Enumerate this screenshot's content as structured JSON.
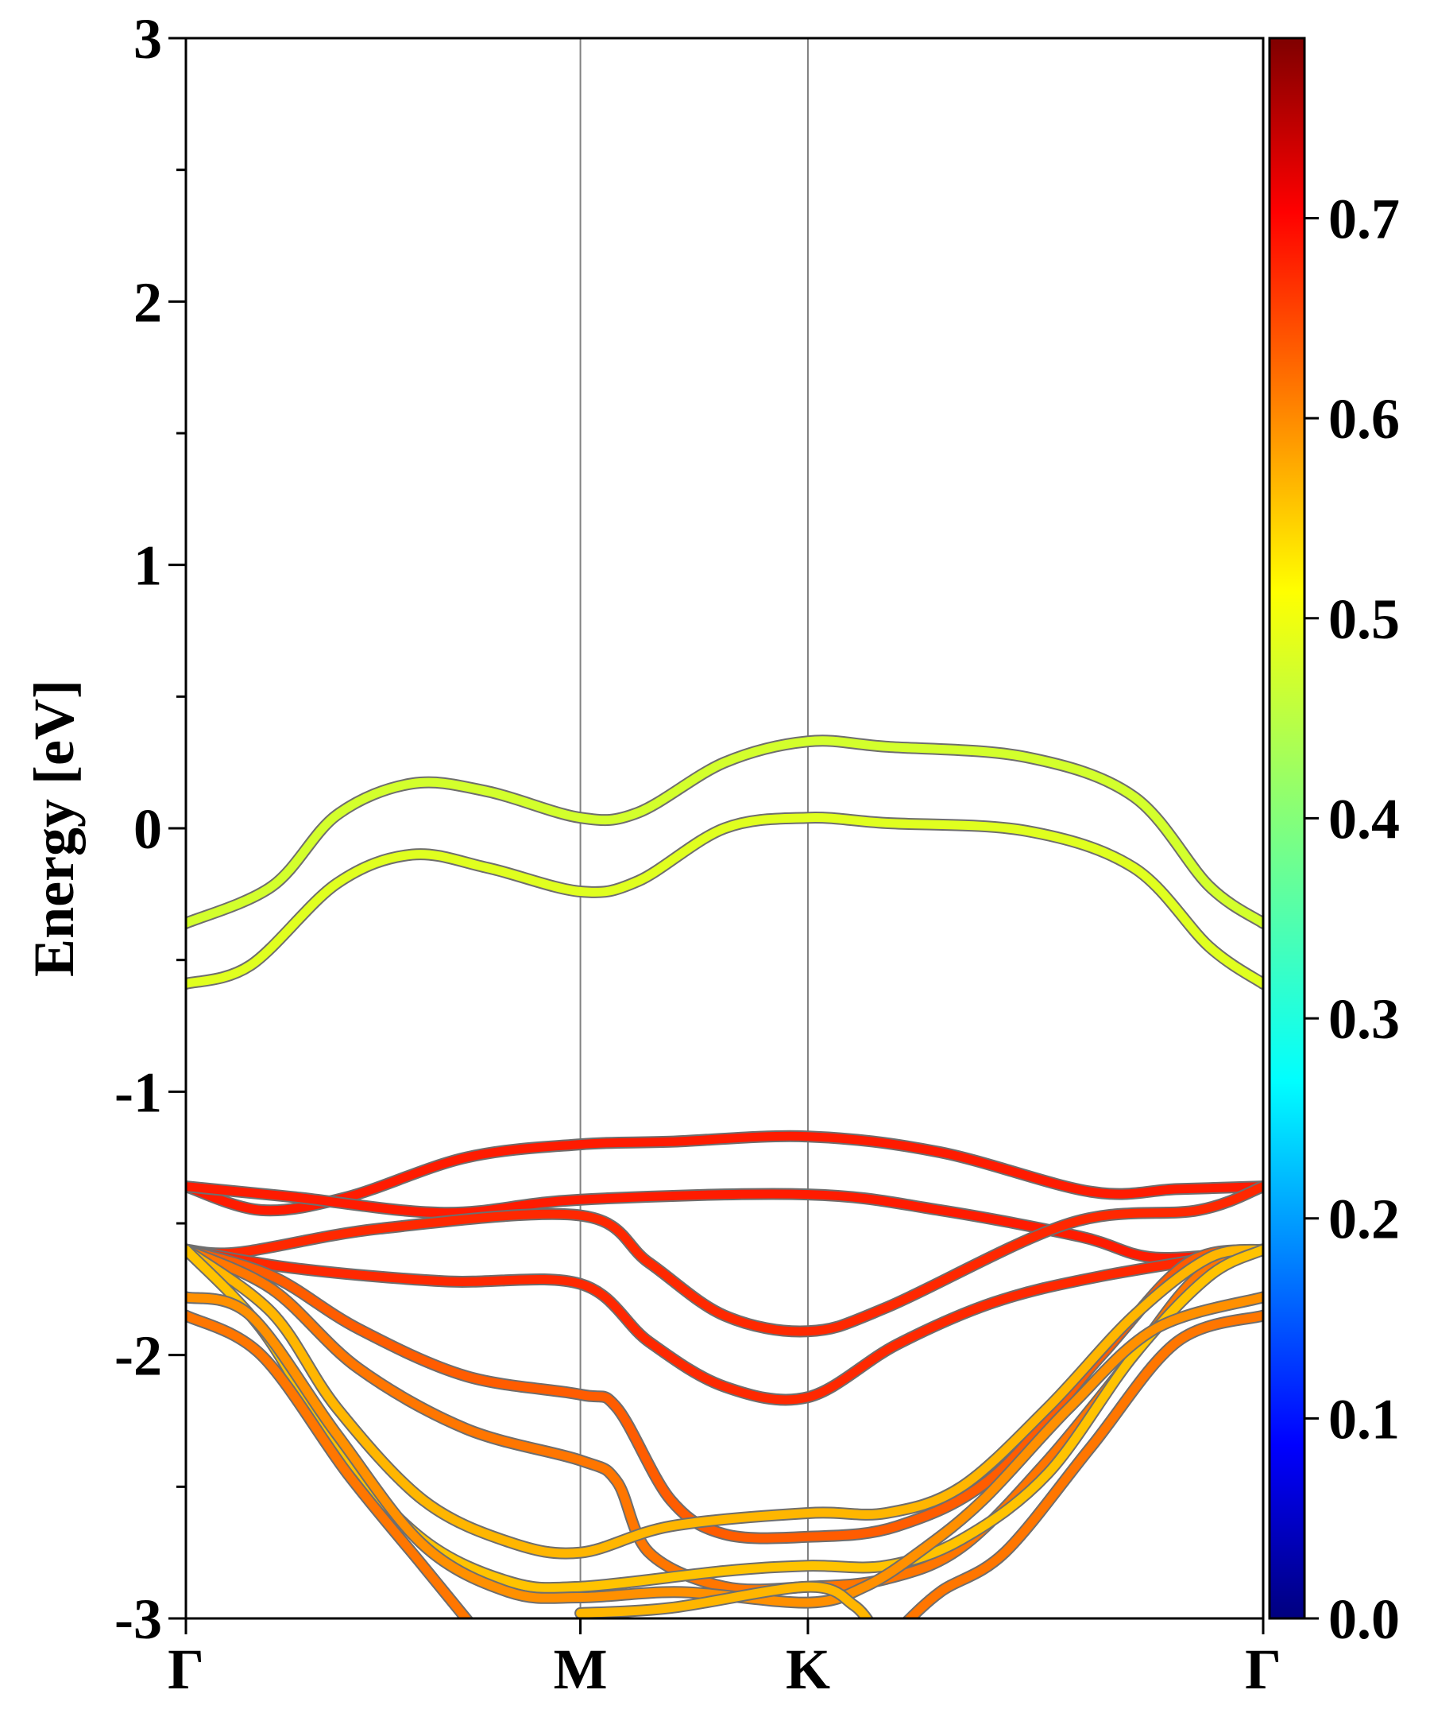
{
  "chart_data": {
    "type": "line",
    "title": "",
    "xlabel": "",
    "ylabel": "Energy [eV]",
    "ylim": [
      -3,
      3
    ],
    "y_ticks": [
      "3",
      "2",
      "1",
      "0",
      "-1",
      "-2",
      "-3"
    ],
    "y_tick_values": [
      3,
      2,
      1,
      0,
      -1,
      -2,
      -3
    ],
    "y_minor_step": 0.5,
    "k_points": [
      "Γ",
      "M",
      "K",
      "Γ"
    ],
    "k_positions": [
      0,
      0.3662,
      0.5774,
      1.0
    ],
    "grid": false,
    "colorbar": {
      "colormap": "jet",
      "range": [
        0.0,
        0.79
      ],
      "ticks": [
        "0.0",
        "0.1",
        "0.2",
        "0.3",
        "0.4",
        "0.5",
        "0.6",
        "0.7"
      ],
      "tick_values": [
        0.0,
        0.1,
        0.2,
        0.3,
        0.4,
        0.5,
        0.6,
        0.7
      ]
    },
    "series": [
      {
        "weight": 0.46,
        "points": [
          [
            0,
            -0.36
          ],
          [
            0.08,
            -0.22
          ],
          [
            0.14,
            0.05
          ],
          [
            0.21,
            0.17
          ],
          [
            0.28,
            0.14
          ],
          [
            0.3662,
            0.04
          ],
          [
            0.42,
            0.06
          ],
          [
            0.5,
            0.25
          ],
          [
            0.5774,
            0.33
          ],
          [
            0.65,
            0.31
          ],
          [
            0.78,
            0.27
          ],
          [
            0.88,
            0.12
          ],
          [
            0.95,
            -0.22
          ],
          [
            1.0,
            -0.36
          ]
        ]
      },
      {
        "weight": 0.47,
        "points": [
          [
            0,
            -0.59
          ],
          [
            0.06,
            -0.52
          ],
          [
            0.14,
            -0.21
          ],
          [
            0.21,
            -0.1
          ],
          [
            0.28,
            -0.15
          ],
          [
            0.3662,
            -0.24
          ],
          [
            0.42,
            -0.2
          ],
          [
            0.5,
            0.0
          ],
          [
            0.5774,
            0.04
          ],
          [
            0.65,
            0.02
          ],
          [
            0.78,
            -0.01
          ],
          [
            0.88,
            -0.15
          ],
          [
            0.95,
            -0.45
          ],
          [
            1.0,
            -0.59
          ]
        ]
      },
      {
        "weight": 0.67,
        "points": [
          [
            0,
            -1.36
          ],
          [
            0.07,
            -1.45
          ],
          [
            0.15,
            -1.4
          ],
          [
            0.26,
            -1.25
          ],
          [
            0.3662,
            -1.2
          ],
          [
            0.45,
            -1.19
          ],
          [
            0.5774,
            -1.17
          ],
          [
            0.7,
            -1.23
          ],
          [
            0.84,
            -1.38
          ],
          [
            0.92,
            -1.37
          ],
          [
            1.0,
            -1.36
          ]
        ]
      },
      {
        "weight": 0.67,
        "points": [
          [
            0,
            -1.36
          ],
          [
            0.1,
            -1.4
          ],
          [
            0.24,
            -1.46
          ],
          [
            0.3662,
            -1.41
          ],
          [
            0.5774,
            -1.39
          ],
          [
            0.7,
            -1.45
          ],
          [
            0.83,
            -1.55
          ],
          [
            0.9,
            -1.63
          ],
          [
            1.0,
            -1.6
          ]
        ]
      },
      {
        "weight": 0.66,
        "points": [
          [
            0,
            -1.6
          ],
          [
            0.05,
            -1.61
          ],
          [
            0.18,
            -1.52
          ],
          [
            0.3662,
            -1.47
          ],
          [
            0.43,
            -1.65
          ],
          [
            0.5,
            -1.85
          ],
          [
            0.5774,
            -1.91
          ],
          [
            0.65,
            -1.82
          ],
          [
            0.82,
            -1.5
          ],
          [
            0.94,
            -1.45
          ],
          [
            1.0,
            -1.36
          ]
        ]
      },
      {
        "weight": 0.66,
        "points": [
          [
            0,
            -1.6
          ],
          [
            0.1,
            -1.67
          ],
          [
            0.24,
            -1.72
          ],
          [
            0.3662,
            -1.73
          ],
          [
            0.43,
            -1.95
          ],
          [
            0.5,
            -2.12
          ],
          [
            0.5774,
            -2.16
          ],
          [
            0.66,
            -1.96
          ],
          [
            0.75,
            -1.8
          ],
          [
            0.85,
            -1.7
          ],
          [
            1.0,
            -1.6
          ]
        ]
      },
      {
        "weight": 0.62,
        "points": [
          [
            0,
            -1.6
          ],
          [
            0.08,
            -1.7
          ],
          [
            0.16,
            -1.9
          ],
          [
            0.26,
            -2.08
          ],
          [
            0.3662,
            -2.15
          ],
          [
            0.4,
            -2.2
          ],
          [
            0.45,
            -2.55
          ],
          [
            0.5,
            -2.68
          ],
          [
            0.5774,
            -2.69
          ],
          [
            0.66,
            -2.65
          ],
          [
            0.75,
            -2.46
          ],
          [
            0.85,
            -2.0
          ],
          [
            0.93,
            -1.65
          ],
          [
            1.0,
            -1.6
          ]
        ]
      },
      {
        "weight": 0.6,
        "points": [
          [
            0,
            -1.6
          ],
          [
            0.08,
            -1.75
          ],
          [
            0.16,
            -2.05
          ],
          [
            0.26,
            -2.28
          ],
          [
            0.3662,
            -2.4
          ],
          [
            0.4,
            -2.48
          ],
          [
            0.43,
            -2.75
          ],
          [
            0.5,
            -2.88
          ],
          [
            0.5774,
            -2.88
          ],
          [
            0.65,
            -2.85
          ],
          [
            0.72,
            -2.73
          ],
          [
            0.8,
            -2.4
          ],
          [
            0.88,
            -2.0
          ],
          [
            0.94,
            -1.7
          ],
          [
            1.0,
            -1.6
          ]
        ]
      },
      {
        "weight": 0.55,
        "points": [
          [
            0,
            -1.6
          ],
          [
            0.08,
            -1.84
          ],
          [
            0.14,
            -2.2
          ],
          [
            0.22,
            -2.55
          ],
          [
            0.3,
            -2.71
          ],
          [
            0.3662,
            -2.75
          ],
          [
            0.45,
            -2.65
          ],
          [
            0.5774,
            -2.6
          ],
          [
            0.65,
            -2.6
          ],
          [
            0.72,
            -2.5
          ],
          [
            0.8,
            -2.2
          ],
          [
            0.88,
            -1.85
          ],
          [
            0.95,
            -1.63
          ],
          [
            1.0,
            -1.6
          ]
        ]
      },
      {
        "weight": 0.54,
        "points": [
          [
            0,
            -1.6
          ],
          [
            0.07,
            -1.9
          ],
          [
            0.14,
            -2.35
          ],
          [
            0.22,
            -2.7
          ],
          [
            0.3,
            -2.86
          ],
          [
            0.3662,
            -2.88
          ],
          [
            0.5,
            -2.82
          ],
          [
            0.5774,
            -2.8
          ],
          [
            0.65,
            -2.8
          ],
          [
            0.72,
            -2.7
          ],
          [
            0.8,
            -2.45
          ],
          [
            0.88,
            -2.0
          ],
          [
            0.95,
            -1.7
          ],
          [
            1.0,
            -1.6
          ]
        ]
      },
      {
        "weight": 0.58,
        "points": [
          [
            0,
            -1.78
          ],
          [
            0.06,
            -1.85
          ],
          [
            0.14,
            -2.3
          ],
          [
            0.22,
            -2.72
          ],
          [
            0.3,
            -2.9
          ],
          [
            0.3662,
            -2.92
          ],
          [
            0.46,
            -2.9
          ],
          [
            0.5774,
            -2.94
          ],
          [
            0.63,
            -2.88
          ],
          [
            0.68,
            -2.75
          ],
          [
            0.74,
            -2.55
          ],
          [
            0.82,
            -2.2
          ],
          [
            0.9,
            -1.9
          ],
          [
            1.0,
            -1.78
          ]
        ]
      },
      {
        "weight": 0.6,
        "points": [
          [
            0,
            -1.85
          ],
          [
            0.07,
            -2.0
          ],
          [
            0.15,
            -2.45
          ],
          [
            0.22,
            -2.8
          ],
          [
            0.27,
            -3.05
          ]
        ]
      },
      {
        "weight": 0.55,
        "points": [
          [
            0.3662,
            -2.98
          ],
          [
            0.45,
            -2.96
          ],
          [
            0.5774,
            -2.88
          ],
          [
            0.62,
            -2.95
          ],
          [
            0.64,
            -3.05
          ]
        ]
      },
      {
        "weight": 0.6,
        "points": [
          [
            0.66,
            -3.05
          ],
          [
            0.7,
            -2.9
          ],
          [
            0.76,
            -2.75
          ],
          [
            0.84,
            -2.35
          ],
          [
            0.92,
            -1.95
          ],
          [
            1.0,
            -1.85
          ]
        ]
      }
    ]
  }
}
